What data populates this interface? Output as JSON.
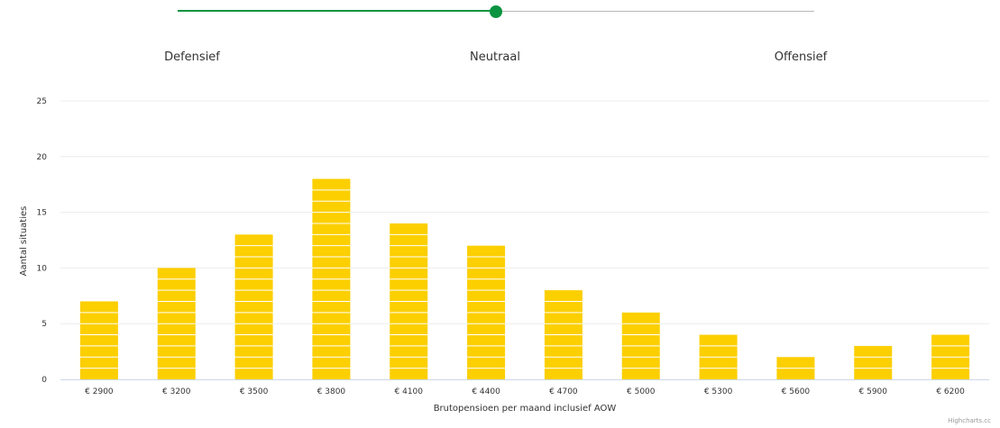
{
  "slider": {
    "value": 0.5,
    "colors": {
      "fill": "#0a9341",
      "track": "#b8b8b8",
      "handle": "#0a9341"
    }
  },
  "risk_profiles": {
    "defensive": "Defensief",
    "neutral": "Neutraal",
    "offensive": "Offensief"
  },
  "chart_data": {
    "type": "bar",
    "categories": [
      "€ 2900",
      "€ 3200",
      "€ 3500",
      "€ 3800",
      "€ 4100",
      "€ 4400",
      "€ 4700",
      "€ 5000",
      "€ 5300",
      "€ 5600",
      "€ 5900",
      "€ 6200"
    ],
    "series": [
      {
        "values": [
          7,
          10,
          13,
          18,
          14,
          12,
          8,
          6,
          4,
          2,
          3,
          4
        ],
        "color": "#fccf00"
      }
    ],
    "xlabel": "Brutopensioen per maand inclusief AOW",
    "ylabel": "Aantal situaties",
    "ylim": [
      0,
      25
    ],
    "yticks": [
      0,
      5,
      10,
      15,
      20,
      25
    ],
    "grid": true,
    "legend": "none"
  },
  "credits": "Highcharts.cc"
}
